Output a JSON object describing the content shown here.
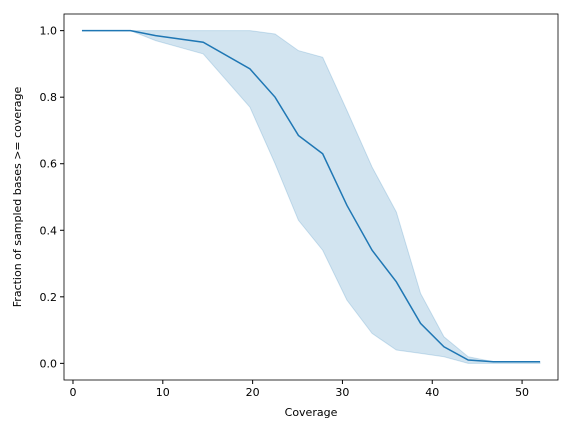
{
  "chart_data": {
    "type": "line",
    "xlabel": "Coverage",
    "ylabel": "Fraction of sampled bases >= coverage",
    "x": [
      1,
      6.4,
      9.2,
      14.5,
      19.7,
      22.5,
      25.1,
      27.8,
      30.5,
      33.3,
      36.0,
      38.7,
      41.3,
      44.0,
      46.8,
      52.0
    ],
    "values": [
      1,
      1,
      0.985,
      0.965,
      0.885,
      0.8,
      0.685,
      0.63,
      0.475,
      0.34,
      0.245,
      0.12,
      0.05,
      0.01,
      0.005,
      0.005
    ],
    "upper": [
      1,
      1,
      1,
      1,
      1,
      0.99,
      0.94,
      0.92,
      0.76,
      0.59,
      0.455,
      0.21,
      0.08,
      0.02,
      0.005,
      0.005
    ],
    "lower": [
      1,
      1,
      0.97,
      0.93,
      0.77,
      0.6,
      0.43,
      0.34,
      0.19,
      0.09,
      0.04,
      0.03,
      0.02,
      0,
      0,
      0
    ],
    "color": "#1f77b4",
    "xlim": [
      -1,
      54
    ],
    "ylim": [
      -0.05,
      1.05
    ],
    "xticks": [
      0,
      10,
      20,
      30,
      40,
      50
    ],
    "yticks": [
      {
        "value": 0,
        "label": "0.0"
      },
      0.2,
      0.4,
      0.6,
      0.8,
      {
        "value": 1,
        "label": "1.0"
      }
    ],
    "grid": false
  }
}
